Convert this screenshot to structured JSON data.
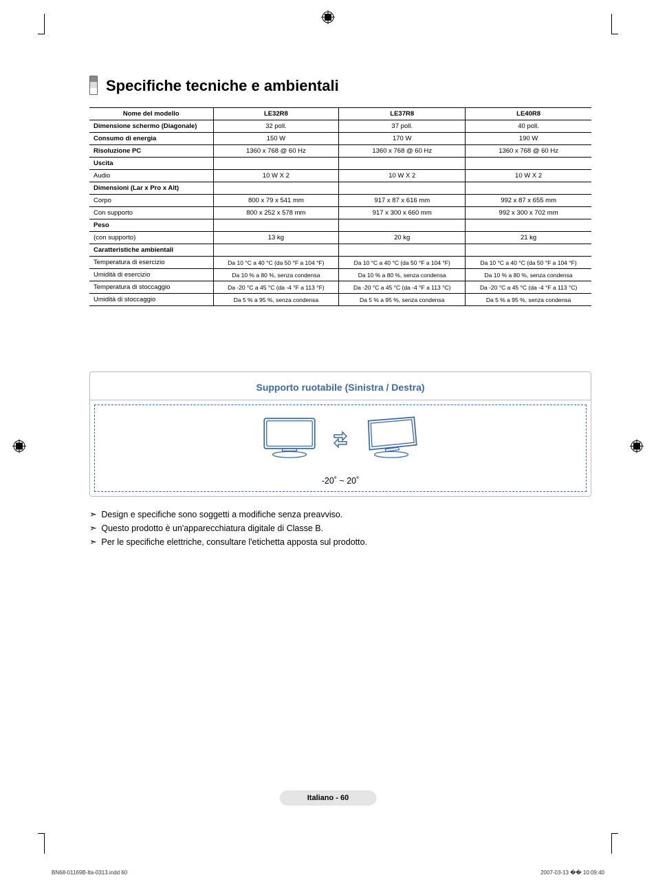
{
  "title": "Specifiche tecniche e ambientali",
  "table": {
    "header": [
      "Nome del modello",
      "LE32R8",
      "LE37R8",
      "LE40R8"
    ],
    "rows": [
      {
        "label": "Dimensione schermo (Diagonale)",
        "bold": true,
        "values": [
          "32 poll.",
          "37 poll.",
          "40 poll."
        ]
      },
      {
        "label": "Consumo di energia",
        "bold": true,
        "values": [
          "150 W",
          "170 W",
          "190 W"
        ]
      },
      {
        "label": "Risoluzione PC",
        "bold": true,
        "values": [
          "1360 x 768 @ 60 Hz",
          "1360 x 768 @ 60 Hz",
          "1360 x 768 @ 60 Hz"
        ]
      },
      {
        "label": "Uscita",
        "bold": true,
        "values": [
          "",
          "",
          ""
        ]
      },
      {
        "label": "Audio",
        "bold": false,
        "values": [
          "10 W X 2",
          "10 W X 2",
          "10 W X 2"
        ],
        "noTopBorder": true
      },
      {
        "label": "Dimensioni (Lar x Pro x Alt)",
        "bold": true,
        "values": [
          "",
          "",
          ""
        ]
      },
      {
        "label": "Corpo",
        "bold": false,
        "values": [
          "800 x 79 x 541 mm",
          "917 x 87 x 616 mm",
          "992 x 87 x 655 mm"
        ],
        "noTopBorder": true
      },
      {
        "label": "Con supporto",
        "bold": false,
        "values": [
          "800 x 252 x 578 mm",
          "917 x 300 x 660 mm",
          "992 x 300 x 702 mm"
        ],
        "noTopBorder": true
      },
      {
        "label": "Peso",
        "bold": true,
        "values": [
          "",
          "",
          ""
        ]
      },
      {
        "label": "(con supporto)",
        "bold": false,
        "values": [
          "13 kg",
          "20 kg",
          "21 kg"
        ],
        "noTopBorder": true
      },
      {
        "label": "Caratteristiche ambientali",
        "bold": true,
        "values": [
          "",
          "",
          ""
        ]
      },
      {
        "label": "Temperatura di esercizio",
        "bold": false,
        "values": [
          "Da 10 °C a 40 °C (da 50 °F a 104 °F)",
          "Da 10 °C a 40 °C (da 50 °F a 104 °F)",
          "Da 10 °C a 40 °C (da 50 °F a 104 °F)"
        ],
        "noTopBorder": true,
        "env": true
      },
      {
        "label": "Umidità  di esercizio",
        "bold": false,
        "values": [
          "Da 10 % a 80 %, senza condensa",
          "Da 10 % a 80 %, senza condensa",
          "Da 10 % a 80 %, senza condensa"
        ],
        "noTopBorder": true,
        "env": true
      },
      {
        "label": "Temperatura di stoccaggio",
        "bold": false,
        "values": [
          "Da -20 °C a 45 °C (da -4 °F a 113 °F)",
          "Da -20 °C a 45 °C (da -4 °F a 113  °C)",
          "Da -20 °C a 45 °C (da -4 °F a 113 °C)"
        ],
        "noTopBorder": true,
        "env": true
      },
      {
        "label": "Umidità di stoccaggio",
        "bold": false,
        "values": [
          "Da 5 % a 95 %, senza condensa",
          "Da 5 % a 95 %, senza condensa",
          "Da 5 % a 95 %, senza condensa"
        ],
        "noTopBorder": true,
        "env": true
      }
    ]
  },
  "swivel": {
    "title": "Supporto ruotabile (Sinistra / Destra)",
    "range": "-20˚ ~ 20˚"
  },
  "notes": [
    "Design e specifiche sono soggetti a modifiche senza preavviso.",
    "Questo prodotto è un'apparecchiatura digitale di Classe B.",
    "Per le specifiche elettriche, consultare l'etichetta apposta sul prodotto."
  ],
  "footer": "Italiano - 60",
  "docFooterLeft": "BN68-01169B-Ita-0313.indd   60",
  "docFooterRight": "2007-03-13   �� 10:09:40"
}
